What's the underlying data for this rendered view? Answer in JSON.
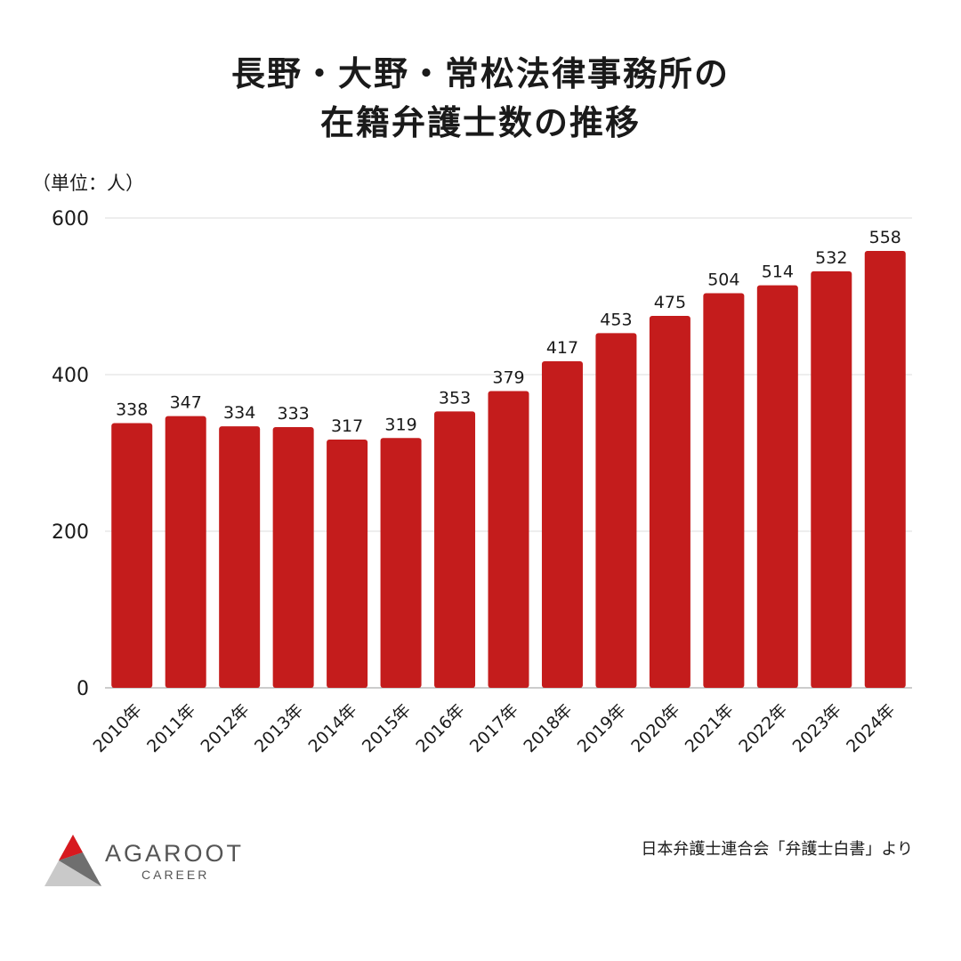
{
  "header": {
    "title_line1": "長野・大野・常松法律事務所の",
    "title_line2": "在籍弁護士数の推移"
  },
  "unit_label": "（単位：人）",
  "source_note": "日本弁護士連合会「弁護士白書」より",
  "logo": {
    "wordmark": "AGAROOT",
    "subtitle": "CAREER",
    "icon": "agaroot-triangle-logo"
  },
  "colors": {
    "bar": "#C41C1C",
    "grid": "#DDDDDD",
    "text": "#1a1a1a"
  },
  "chart_data": {
    "type": "bar",
    "categories": [
      "2010年",
      "2011年",
      "2012年",
      "2013年",
      "2014年",
      "2015年",
      "2016年",
      "2017年",
      "2018年",
      "2019年",
      "2020年",
      "2021年",
      "2022年",
      "2023年",
      "2024年"
    ],
    "values": [
      338,
      347,
      334,
      333,
      317,
      319,
      353,
      379,
      417,
      453,
      475,
      504,
      514,
      532,
      558
    ],
    "ylim": [
      0,
      600
    ],
    "yticks": [
      0,
      200,
      400,
      600
    ],
    "grid": true,
    "data_labels": true
  }
}
